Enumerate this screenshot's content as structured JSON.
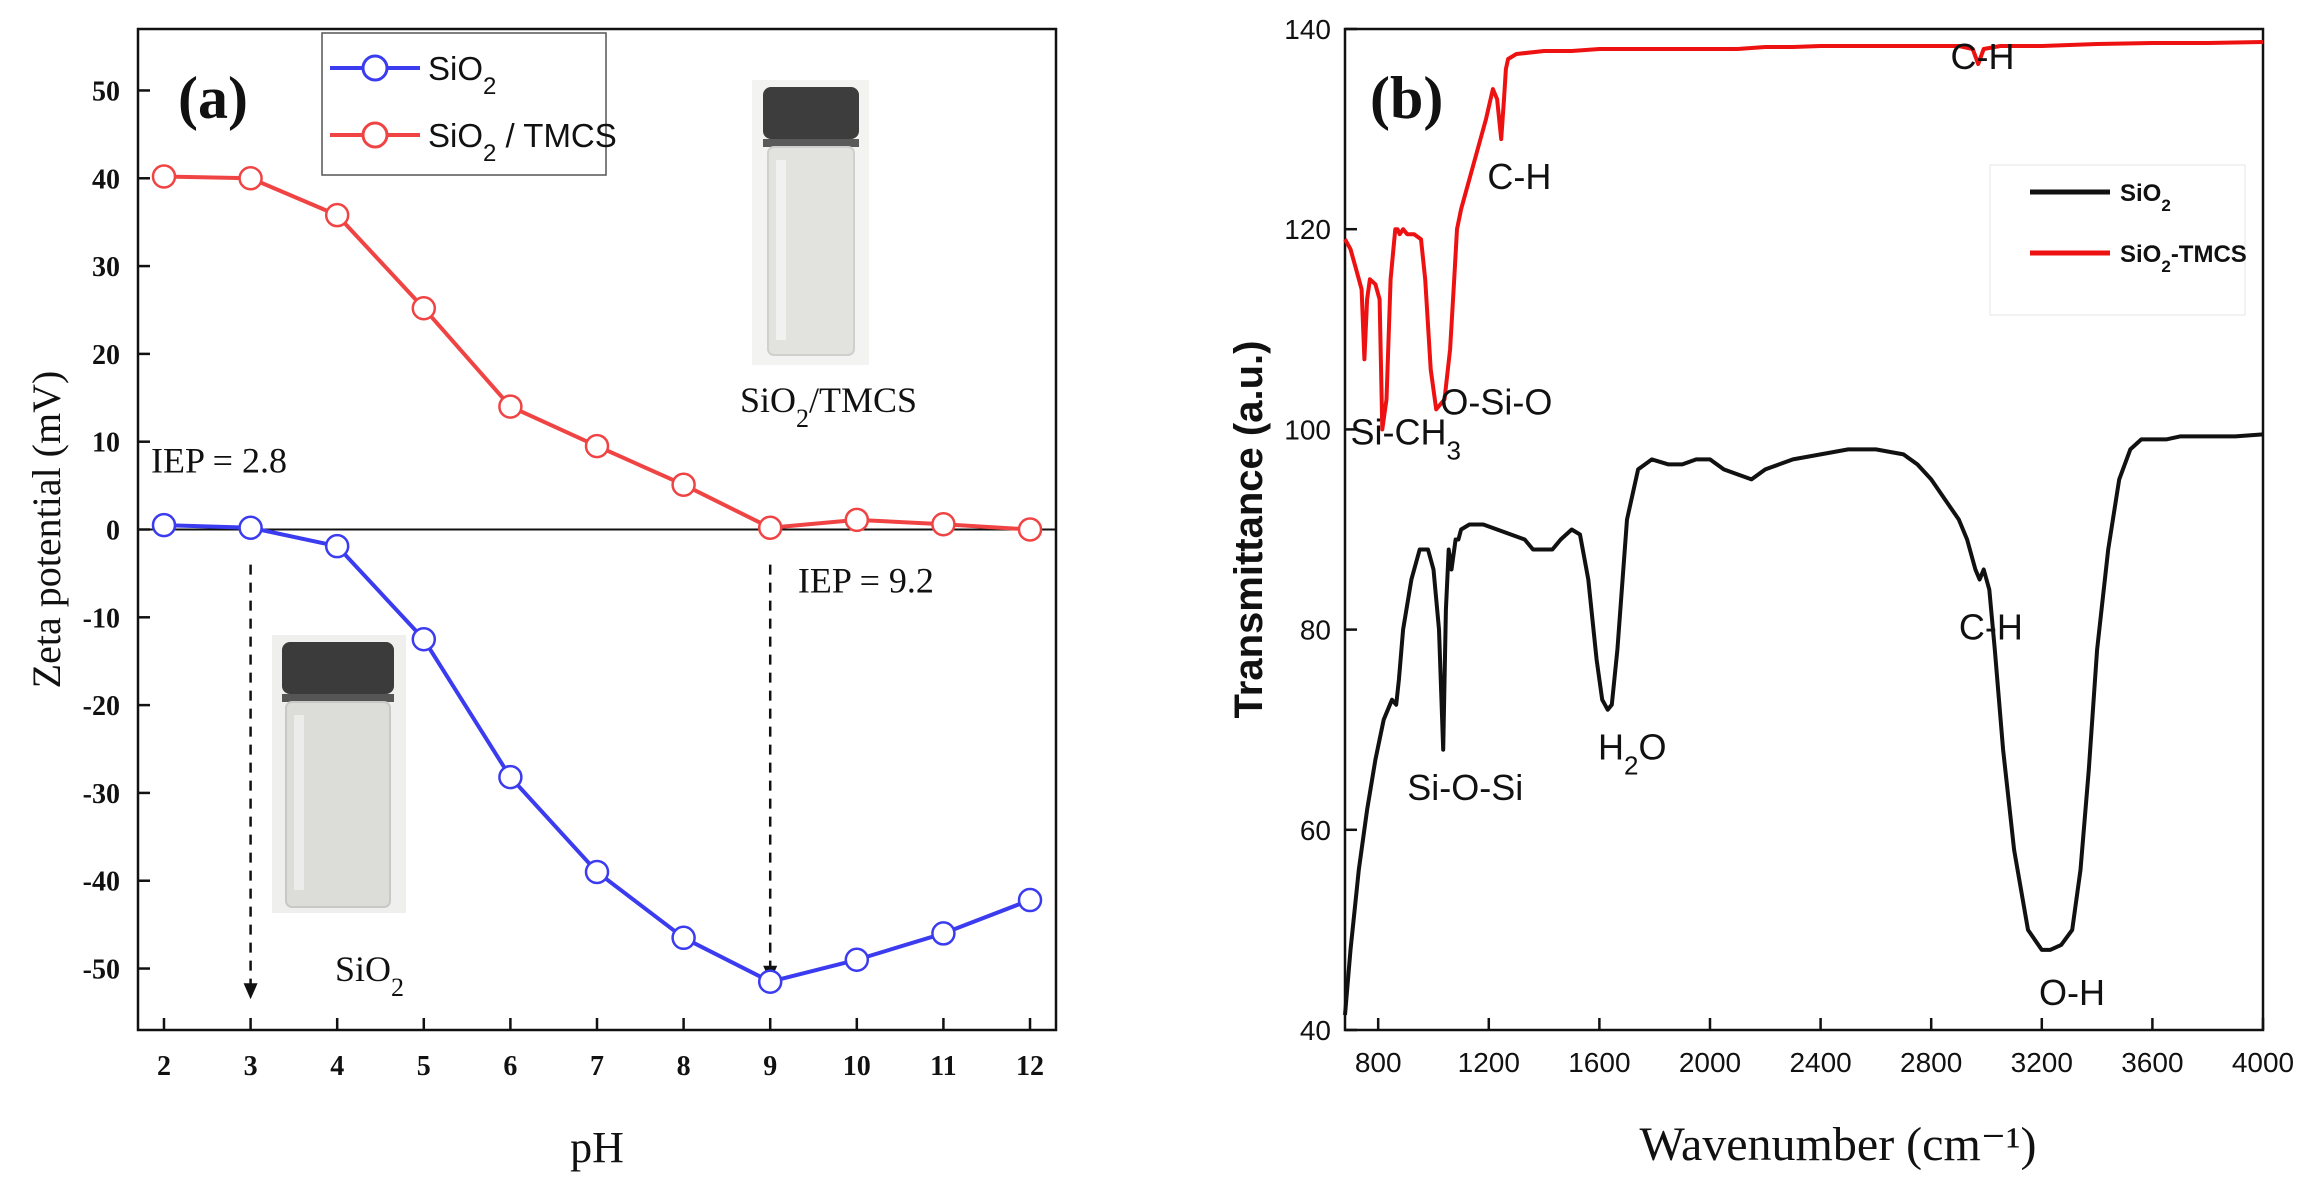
{
  "chart_data": [
    {
      "type": "line",
      "panel_label": "(a)",
      "xlabel": "pH",
      "ylabel": "Zeta potential (mV)",
      "xlim": [
        1.7,
        12.3
      ],
      "ylim": [
        -57,
        57
      ],
      "x_ticks": [
        2,
        3,
        4,
        5,
        6,
        7,
        8,
        9,
        10,
        11,
        12
      ],
      "y_ticks": [
        -50,
        -40,
        -30,
        -20,
        -10,
        0,
        10,
        20,
        30,
        40,
        50
      ],
      "grid": false,
      "legend_position": "top-left",
      "zero_line": true,
      "series": [
        {
          "name_main": "SiO",
          "name_sub": "2",
          "name_tail": "",
          "color": "#3b3bf0",
          "marker": "open-circle",
          "x": [
            2,
            3,
            4,
            5,
            6,
            7,
            8,
            9,
            10,
            11,
            12
          ],
          "y": [
            0.5,
            0.2,
            -1.9,
            -12.5,
            -28.2,
            -39,
            -46.5,
            -51.5,
            -49,
            -46,
            -42.2
          ]
        },
        {
          "name_main": "SiO",
          "name_sub": "2",
          "name_tail": " / TMCS",
          "color": "#f04444",
          "marker": "open-circle",
          "x": [
            2,
            3,
            4,
            5,
            6,
            7,
            8,
            9,
            10,
            11,
            12
          ],
          "y": [
            40.2,
            40,
            35.8,
            25.2,
            14,
            9.5,
            5.1,
            0.2,
            1.1,
            0.6,
            0
          ]
        }
      ],
      "annotations": [
        {
          "text": "IEP = 2.8",
          "x": 1.85,
          "y": 6.5
        },
        {
          "text": "IEP = 9.2",
          "x": 9.32,
          "y": -7.2
        }
      ],
      "iep_arrows": [
        {
          "x": 3,
          "from_y": -4,
          "to_y": -53.5
        },
        {
          "x": 9,
          "from_y": -4,
          "to_y": -51.5
        }
      ],
      "vial_labels": [
        {
          "main": "SiO",
          "sub": "2",
          "tail": "/TMCS"
        },
        {
          "main": "SiO",
          "sub": "2",
          "tail": ""
        }
      ]
    },
    {
      "type": "line",
      "panel_label": "(b)",
      "xlabel": "Wavenumber (cm⁻¹)",
      "ylabel": "Transmittance (a.u.)",
      "xlim": [
        680,
        4000
      ],
      "ylim": [
        40,
        140
      ],
      "x_ticks": [
        800,
        1200,
        1600,
        2000,
        2400,
        2800,
        3200,
        3600,
        4000
      ],
      "y_ticks": [
        40,
        60,
        80,
        100,
        120,
        140
      ],
      "grid": false,
      "legend_position": "top-right",
      "series": [
        {
          "name_main": "SiO",
          "name_sub": "2",
          "name_tail": "",
          "color": "#111111",
          "x": [
            680,
            700,
            730,
            760,
            790,
            820,
            850,
            865,
            875,
            890,
            920,
            950,
            980,
            1000,
            1020,
            1035,
            1045,
            1055,
            1065,
            1080,
            1090,
            1100,
            1130,
            1180,
            1230,
            1280,
            1330,
            1360,
            1400,
            1430,
            1460,
            1500,
            1530,
            1560,
            1590,
            1610,
            1630,
            1645,
            1665,
            1700,
            1740,
            1790,
            1850,
            1900,
            1950,
            2000,
            2050,
            2100,
            2150,
            2200,
            2250,
            2300,
            2400,
            2500,
            2600,
            2700,
            2750,
            2800,
            2850,
            2900,
            2930,
            2960,
            2975,
            2990,
            3010,
            3030,
            3060,
            3100,
            3150,
            3200,
            3230,
            3270,
            3310,
            3340,
            3370,
            3400,
            3440,
            3480,
            3520,
            3560,
            3600,
            3650,
            3700,
            3800,
            3900,
            4000
          ],
          "y": [
            41.5,
            48,
            56,
            62,
            67,
            71,
            73,
            72.5,
            75,
            80,
            85,
            88,
            88,
            86,
            80,
            68,
            82,
            88,
            86,
            89,
            89,
            90,
            90.5,
            90.5,
            90,
            89.5,
            89,
            88,
            88,
            88,
            89,
            90,
            89.5,
            85,
            77,
            73,
            72,
            72.5,
            78,
            91,
            96,
            97,
            96.5,
            96.5,
            97,
            97,
            96,
            95.5,
            95,
            96,
            96.5,
            97,
            97.5,
            98,
            98,
            97.5,
            96.5,
            95,
            93,
            91,
            89,
            86,
            85,
            86,
            84,
            78,
            68,
            58,
            50,
            48,
            48,
            48.5,
            50,
            56,
            66,
            78,
            88,
            95,
            98,
            99,
            99,
            99,
            99.3,
            99.3,
            99.3,
            99.5
          ]
        },
        {
          "name_main": "SiO",
          "name_sub": "2",
          "name_tail": "-TMCS",
          "color": "#ee1111",
          "x": [
            680,
            700,
            720,
            740,
            750,
            760,
            770,
            790,
            805,
            815,
            830,
            845,
            855,
            862,
            870,
            878,
            890,
            905,
            930,
            955,
            970,
            990,
            1010,
            1040,
            1060,
            1075,
            1085,
            1100,
            1130,
            1160,
            1190,
            1215,
            1230,
            1245,
            1255,
            1262,
            1270,
            1300,
            1400,
            1500,
            1600,
            1700,
            1800,
            1900,
            2000,
            2100,
            2200,
            2300,
            2400,
            2500,
            2600,
            2700,
            2800,
            2900,
            2950,
            2970,
            2990,
            3050,
            3200,
            3400,
            3600,
            3800,
            4000
          ],
          "y": [
            119,
            118,
            116,
            114,
            107,
            113,
            115,
            114.5,
            113,
            100,
            103,
            115,
            118,
            120,
            120,
            119.5,
            120,
            119.5,
            119.5,
            119,
            115,
            106,
            102,
            103,
            108,
            115,
            120,
            122,
            125,
            128,
            131,
            134,
            133,
            129,
            133,
            136,
            137,
            137.5,
            137.8,
            137.8,
            138,
            138,
            138,
            138,
            138,
            138,
            138.2,
            138.2,
            138.3,
            138.3,
            138.3,
            138.3,
            138.3,
            138.3,
            138,
            136.5,
            138,
            138.3,
            138.3,
            138.5,
            138.6,
            138.6,
            138.7
          ]
        }
      ],
      "annotations": [
        {
          "main": "Si-CH",
          "sub": "3",
          "tail": "",
          "x": 700,
          "y": 98.5
        },
        {
          "main": "O-Si-O",
          "sub": "",
          "tail": "",
          "x": 1025,
          "y": 101.5
        },
        {
          "main": "C-H",
          "sub": "",
          "tail": "",
          "x": 1195,
          "y": 124
        },
        {
          "main": "C-H",
          "sub": "",
          "tail": "",
          "x": 2870,
          "y": 136
        },
        {
          "main": "Si-O-Si",
          "sub": "",
          "tail": "",
          "x": 905,
          "y": 63
        },
        {
          "main": "H",
          "sub": "2",
          "tail": "O",
          "x": 1595,
          "y": 67
        },
        {
          "main": "C-H",
          "sub": "",
          "tail": "",
          "x": 2900,
          "y": 79
        },
        {
          "main": "O-H",
          "sub": "",
          "tail": "",
          "x": 3190,
          "y": 42.5
        }
      ]
    }
  ]
}
